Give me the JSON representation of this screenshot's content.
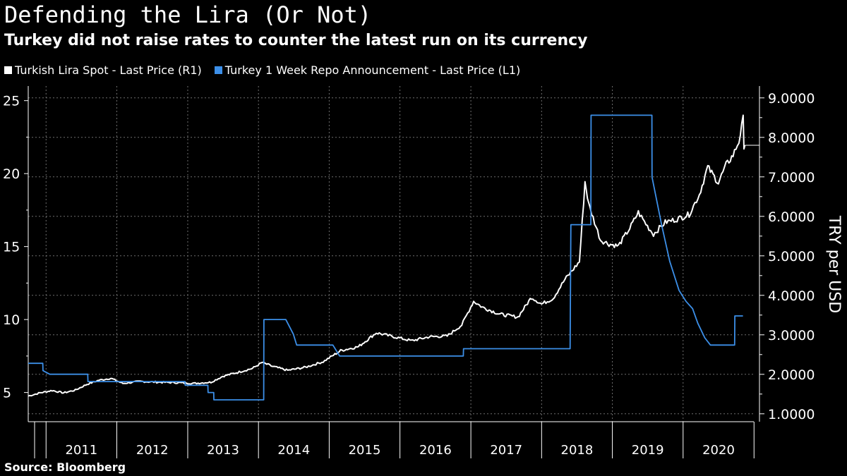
{
  "title": "Defending the Lira (Or Not)",
  "subtitle": "Turkey did not raise rates to counter the latest run on its currency",
  "source": "Source: Bloomberg",
  "colors": {
    "background": "#000000",
    "lira": "#ffffff",
    "repo": "#3c8fe8",
    "grid": "#6e6e6e"
  },
  "chart_data": {
    "type": "line",
    "x_range": [
      "2010-10-01",
      "2020-12-31"
    ],
    "x_tick_labels": [
      "2011",
      "2012",
      "2013",
      "2014",
      "2015",
      "2016",
      "2017",
      "2018",
      "2019",
      "2020"
    ],
    "left_axis": {
      "range": [
        3,
        26
      ],
      "ticks": [
        5,
        10,
        15,
        20,
        25
      ]
    },
    "right_axis": {
      "label": "TRY per USD",
      "range": [
        0.8,
        9.3
      ],
      "ticks": [
        "1.0000",
        "2.0000",
        "3.0000",
        "4.0000",
        "5.0000",
        "6.0000",
        "7.0000",
        "8.0000",
        "9.0000"
      ]
    },
    "grid": true,
    "legend_position": "top-left",
    "series": [
      {
        "name": "Turkish Lira Spot - Last Price (R1)",
        "axis": "right",
        "last_value": 7.8,
        "points": [
          [
            "2010-10-01",
            1.45
          ],
          [
            "2010-12-01",
            1.53
          ],
          [
            "2011-02-01",
            1.59
          ],
          [
            "2011-04-01",
            1.53
          ],
          [
            "2011-06-01",
            1.6
          ],
          [
            "2011-08-01",
            1.75
          ],
          [
            "2011-10-01",
            1.85
          ],
          [
            "2011-12-01",
            1.9
          ],
          [
            "2012-02-01",
            1.77
          ],
          [
            "2012-05-01",
            1.82
          ],
          [
            "2012-08-01",
            1.8
          ],
          [
            "2012-11-01",
            1.79
          ],
          [
            "2013-02-01",
            1.77
          ],
          [
            "2013-05-01",
            1.8
          ],
          [
            "2013-07-01",
            1.95
          ],
          [
            "2013-09-01",
            2.03
          ],
          [
            "2013-12-01",
            2.15
          ],
          [
            "2014-01-20",
            2.3
          ],
          [
            "2014-03-15",
            2.2
          ],
          [
            "2014-06-01",
            2.1
          ],
          [
            "2014-09-01",
            2.18
          ],
          [
            "2014-12-01",
            2.32
          ],
          [
            "2015-03-01",
            2.6
          ],
          [
            "2015-06-01",
            2.7
          ],
          [
            "2015-09-01",
            3.05
          ],
          [
            "2015-12-01",
            2.95
          ],
          [
            "2016-03-01",
            2.85
          ],
          [
            "2016-06-01",
            2.95
          ],
          [
            "2016-09-01",
            2.97
          ],
          [
            "2016-11-15",
            3.25
          ],
          [
            "2017-01-15",
            3.85
          ],
          [
            "2017-03-01",
            3.7
          ],
          [
            "2017-06-01",
            3.52
          ],
          [
            "2017-09-01",
            3.45
          ],
          [
            "2017-11-10",
            3.95
          ],
          [
            "2018-01-01",
            3.78
          ],
          [
            "2018-03-01",
            3.92
          ],
          [
            "2018-05-01",
            4.4
          ],
          [
            "2018-07-15",
            4.85
          ],
          [
            "2018-08-13",
            6.88
          ],
          [
            "2018-09-01",
            6.3
          ],
          [
            "2018-11-01",
            5.4
          ],
          [
            "2018-12-15",
            5.3
          ],
          [
            "2019-02-01",
            5.25
          ],
          [
            "2019-04-01",
            5.7
          ],
          [
            "2019-05-15",
            6.1
          ],
          [
            "2019-07-01",
            5.75
          ],
          [
            "2019-08-01",
            5.55
          ],
          [
            "2019-10-01",
            5.85
          ],
          [
            "2019-12-01",
            5.93
          ],
          [
            "2020-02-01",
            6.05
          ],
          [
            "2020-03-25",
            6.55
          ],
          [
            "2020-05-07",
            7.25
          ],
          [
            "2020-07-01",
            6.85
          ],
          [
            "2020-08-10",
            7.3
          ],
          [
            "2020-09-15",
            7.55
          ],
          [
            "2020-10-15",
            7.9
          ],
          [
            "2020-11-06",
            8.47
          ],
          [
            "2020-11-10",
            7.8
          ],
          [
            "2020-11-15",
            7.8
          ]
        ]
      },
      {
        "name": "Turkey 1 Week Repo Announcement - Last Price (L1)",
        "axis": "left",
        "last_value": 10.25,
        "points": [
          [
            "2010-10-01",
            7.0
          ],
          [
            "2010-12-15",
            7.0
          ],
          [
            "2010-12-16",
            6.5
          ],
          [
            "2011-01-20",
            6.25
          ],
          [
            "2011-08-04",
            6.25
          ],
          [
            "2011-08-05",
            5.75
          ],
          [
            "2012-12-18",
            5.75
          ],
          [
            "2012-12-19",
            5.5
          ],
          [
            "2013-04-15",
            5.5
          ],
          [
            "2013-04-16",
            5.0
          ],
          [
            "2013-05-15",
            5.0
          ],
          [
            "2013-05-16",
            4.5
          ],
          [
            "2014-01-28",
            4.5
          ],
          [
            "2014-01-29",
            10.0
          ],
          [
            "2014-05-22",
            10.0
          ],
          [
            "2014-06-30",
            9.0
          ],
          [
            "2014-07-17",
            8.25
          ],
          [
            "2015-01-20",
            8.25
          ],
          [
            "2015-02-24",
            7.5
          ],
          [
            "2016-11-23",
            7.5
          ],
          [
            "2016-11-24",
            8.0
          ],
          [
            "2018-05-28",
            8.0
          ],
          [
            "2018-06-01",
            16.5
          ],
          [
            "2018-09-12",
            16.5
          ],
          [
            "2018-09-13",
            24.0
          ],
          [
            "2019-07-24",
            24.0
          ],
          [
            "2019-07-25",
            19.75
          ],
          [
            "2019-09-12",
            16.5
          ],
          [
            "2019-10-24",
            14.0
          ],
          [
            "2019-12-11",
            12.0
          ],
          [
            "2020-01-16",
            11.25
          ],
          [
            "2020-02-19",
            10.75
          ],
          [
            "2020-03-17",
            9.75
          ],
          [
            "2020-04-22",
            8.75
          ],
          [
            "2020-05-21",
            8.25
          ],
          [
            "2020-09-23",
            8.25
          ],
          [
            "2020-09-24",
            10.25
          ],
          [
            "2020-11-05",
            10.25
          ]
        ]
      }
    ]
  }
}
